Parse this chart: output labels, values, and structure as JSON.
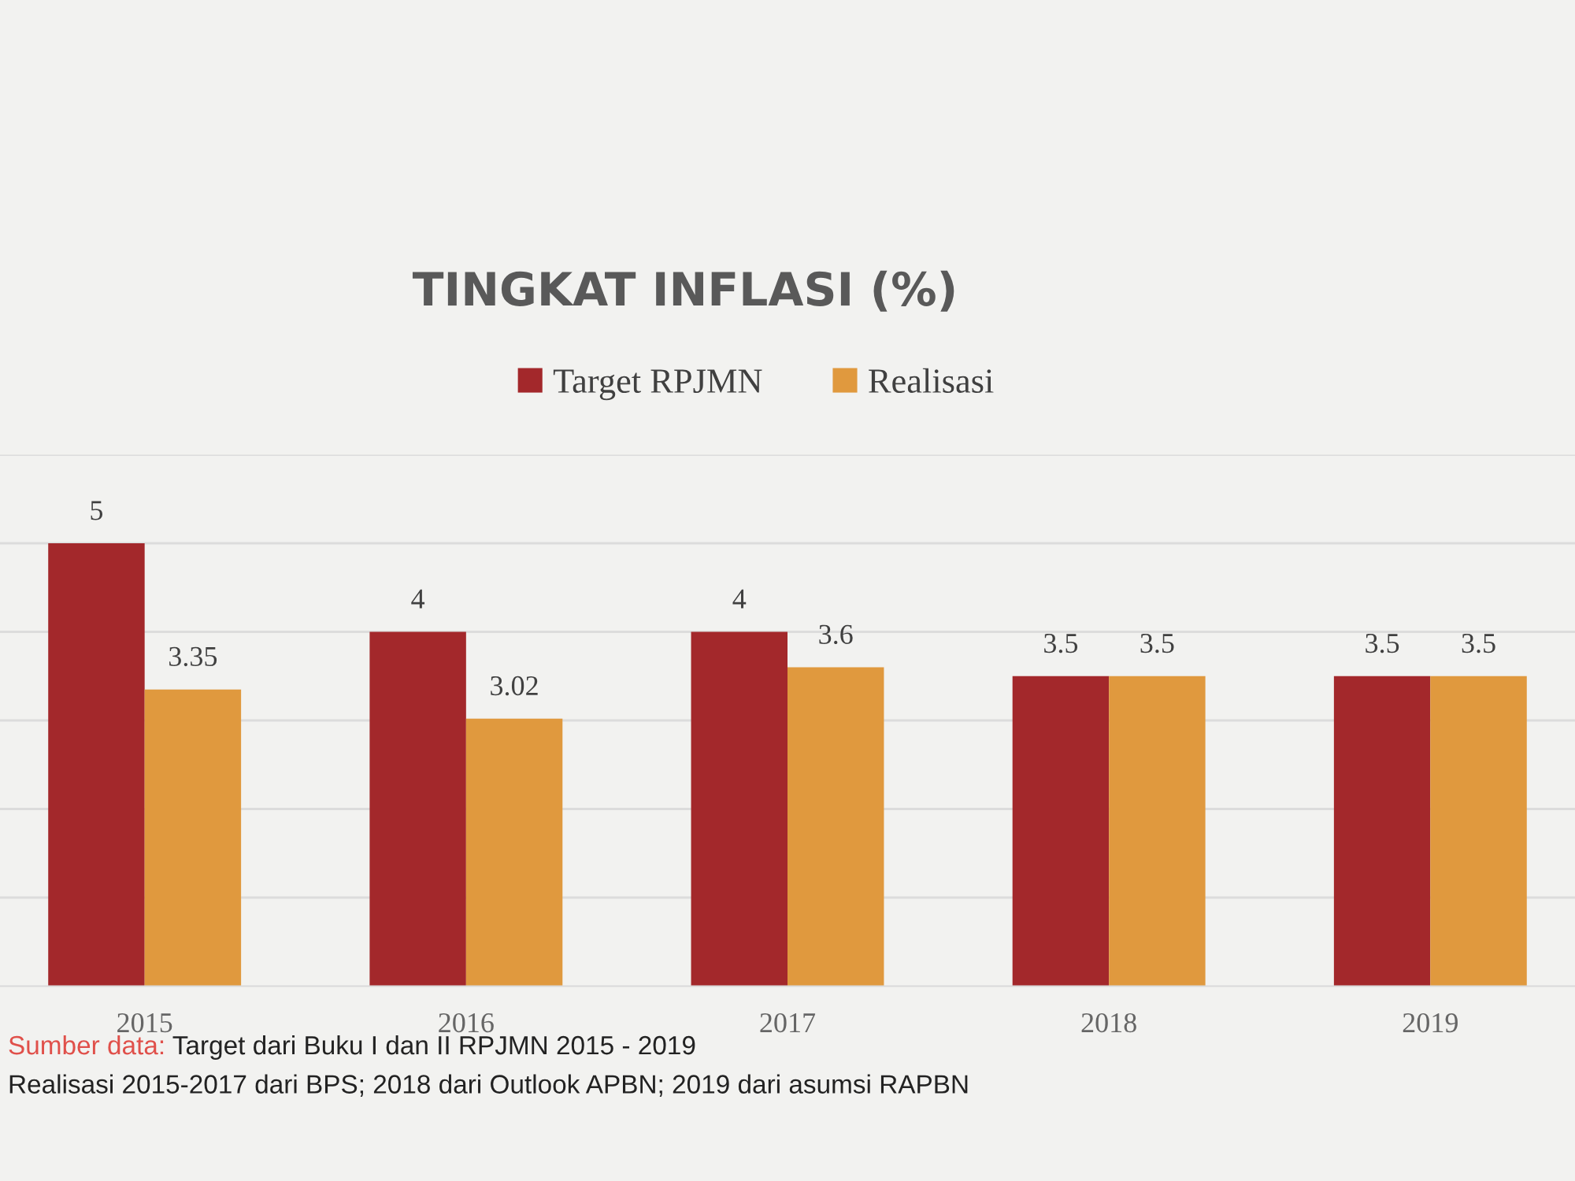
{
  "chart_data": {
    "type": "bar",
    "title": "TINGKAT INFLASI (%)",
    "categories": [
      "2015",
      "2016",
      "2017",
      "2018",
      "2019"
    ],
    "series": [
      {
        "name": "Target RPJMN",
        "color": "#a3282b",
        "values": [
          5,
          4,
          4,
          3.5,
          3.5
        ]
      },
      {
        "name": "Realisasi",
        "color": "#e0993e",
        "values": [
          3.35,
          3.02,
          3.6,
          3.5,
          3.5
        ]
      }
    ],
    "ylim": [
      0,
      6
    ],
    "yticks": [
      {
        "value": 1,
        "label": null
      },
      {
        "value": 2,
        "label": null
      },
      {
        "value": 3,
        "label": null
      },
      {
        "value": 4,
        "label": null
      },
      {
        "value": 5,
        "label": null
      },
      {
        "value": 6,
        "label": null
      }
    ],
    "tick_labels": "x",
    "grid": "y",
    "legend": "top",
    "data_labels": true,
    "annotations": [
      "Sumber data:",
      "Target dari Buku I dan II RPJMN 2015 - 2019",
      "Realisasi 2015-2017 dari BPS; 2018 dari Outlook APBN; 2019 dari asumsi RAPBN"
    ]
  }
}
